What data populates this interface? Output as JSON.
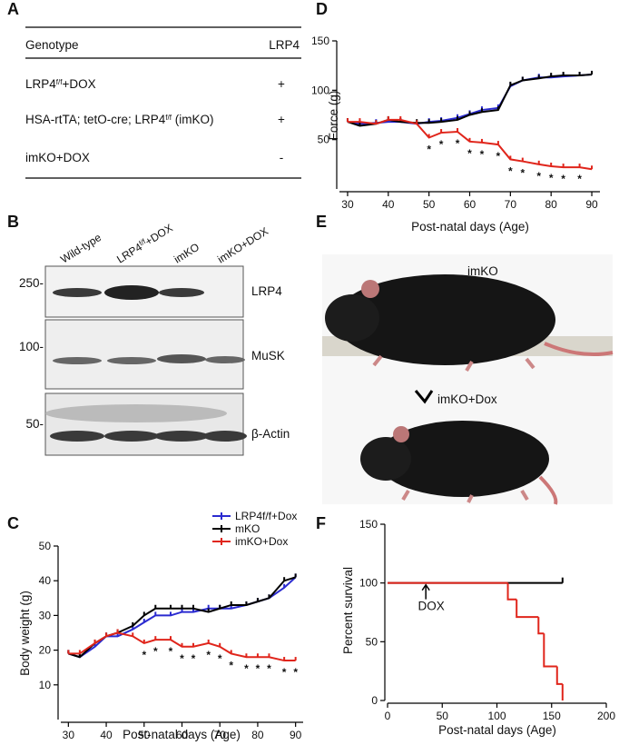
{
  "panel_labels": [
    "A",
    "B",
    "C",
    "D",
    "E",
    "F"
  ],
  "table": {
    "header": [
      "Genotype",
      "LRP4"
    ],
    "rows": [
      {
        "genotype": [
          "LRP4",
          "f/f",
          "+DOX"
        ],
        "LRP4": "+"
      },
      {
        "genotype": [
          "HSA-rtTA; tetO-cre; LRP4",
          "f/f",
          " (imKO)"
        ],
        "LRP4": "+"
      },
      {
        "genotype": [
          "imKO+DOX"
        ],
        "LRP4": "-"
      }
    ]
  },
  "blot": {
    "lanes": [
      [
        "Wild-type"
      ],
      [
        "LRP4",
        "f/f",
        "+DOX"
      ],
      [
        "imKO"
      ],
      [
        "imKO+DOX"
      ]
    ],
    "markers": [
      "250-",
      "100-",
      "50-"
    ],
    "proteins": [
      "LRP4",
      "MuSK",
      "β-Actin"
    ]
  },
  "photo": {
    "labels": [
      "imKO",
      "imKO+Dox"
    ]
  },
  "chart_data": [
    {
      "type": "line",
      "y_label": "Body weight (g)",
      "x_label": "Post-natal days (Age)",
      "x": [
        30,
        33,
        37,
        40,
        43,
        47,
        50,
        53,
        57,
        60,
        63,
        67,
        70,
        73,
        77,
        80,
        83,
        87,
        90
      ],
      "xlim": [
        28,
        92
      ],
      "xticks": [
        30,
        40,
        50,
        60,
        70,
        80,
        90
      ],
      "ylim": [
        0,
        50
      ],
      "yticks": [
        10,
        20,
        30,
        40,
        50
      ],
      "legend": "top-right",
      "series": [
        {
          "name": "LRP4f/f+Dox",
          "color": "#2b2bd0",
          "values": [
            19,
            18,
            21,
            24,
            24,
            26,
            28,
            30,
            30,
            31,
            31,
            32,
            32,
            32,
            33,
            34,
            35,
            38,
            41
          ]
        },
        {
          "name": "mKO",
          "color": "#000000",
          "values": [
            19,
            18,
            22,
            24,
            25,
            27,
            30,
            32,
            32,
            32,
            32,
            31,
            32,
            33,
            33,
            34,
            35,
            40,
            41
          ]
        },
        {
          "name": "imKO+Dox",
          "color": "#e0251b",
          "values": [
            19,
            19,
            22,
            24,
            25,
            24,
            22,
            23,
            23,
            21,
            21,
            22,
            21,
            19,
            18,
            18,
            18,
            17,
            17
          ]
        }
      ],
      "significance": {
        "label": "*",
        "x": [
          50,
          53,
          57,
          60,
          63,
          67,
          70,
          73,
          77,
          80,
          83,
          87,
          90
        ]
      }
    },
    {
      "type": "line",
      "y_label": "Force (g)",
      "x_label": "Post-natal days (Age)",
      "x": [
        30,
        33,
        37,
        40,
        43,
        47,
        50,
        53,
        57,
        60,
        63,
        67,
        70,
        73,
        77,
        80,
        83,
        87,
        90
      ],
      "xlim": [
        28,
        92
      ],
      "xticks": [
        30,
        40,
        50,
        60,
        70,
        80,
        90
      ],
      "ylim": [
        0,
        150
      ],
      "yticks": [
        50,
        100,
        150
      ],
      "series": [
        {
          "color": "#2b2bd0",
          "values": [
            68,
            66,
            67,
            68,
            68,
            66,
            68,
            69,
            72,
            76,
            80,
            82,
            104,
            110,
            113,
            113,
            114,
            115,
            116
          ]
        },
        {
          "color": "#000000",
          "values": [
            68,
            64,
            66,
            70,
            68,
            67,
            67,
            68,
            70,
            75,
            78,
            80,
            105,
            110,
            112,
            114,
            115,
            115,
            116
          ]
        },
        {
          "color": "#e0251b",
          "values": [
            68,
            68,
            66,
            70,
            70,
            66,
            52,
            57,
            58,
            48,
            47,
            45,
            30,
            28,
            25,
            23,
            22,
            22,
            20
          ]
        }
      ],
      "significance": {
        "label": "*",
        "x": [
          50,
          53,
          57,
          60,
          63,
          67,
          70,
          73,
          77,
          80,
          83,
          87
        ]
      }
    },
    {
      "type": "survival",
      "y_label": "Percent survival",
      "x_label": "Post-natal days (Age)",
      "xlim": [
        0,
        200
      ],
      "xticks": [
        0,
        50,
        100,
        150,
        200
      ],
      "ylim": [
        0,
        150
      ],
      "yticks": [
        0,
        50,
        100,
        150
      ],
      "series": [
        {
          "color": "#000000",
          "x": [
            0,
            160
          ],
          "values": [
            100,
            100
          ]
        },
        {
          "color": "#e0251b",
          "x": [
            0,
            110,
            118,
            138,
            143,
            155,
            160
          ],
          "values": [
            100,
            86,
            71,
            57,
            29,
            14,
            0
          ]
        }
      ],
      "annotation": {
        "text": "DOX",
        "x": 35
      }
    }
  ]
}
